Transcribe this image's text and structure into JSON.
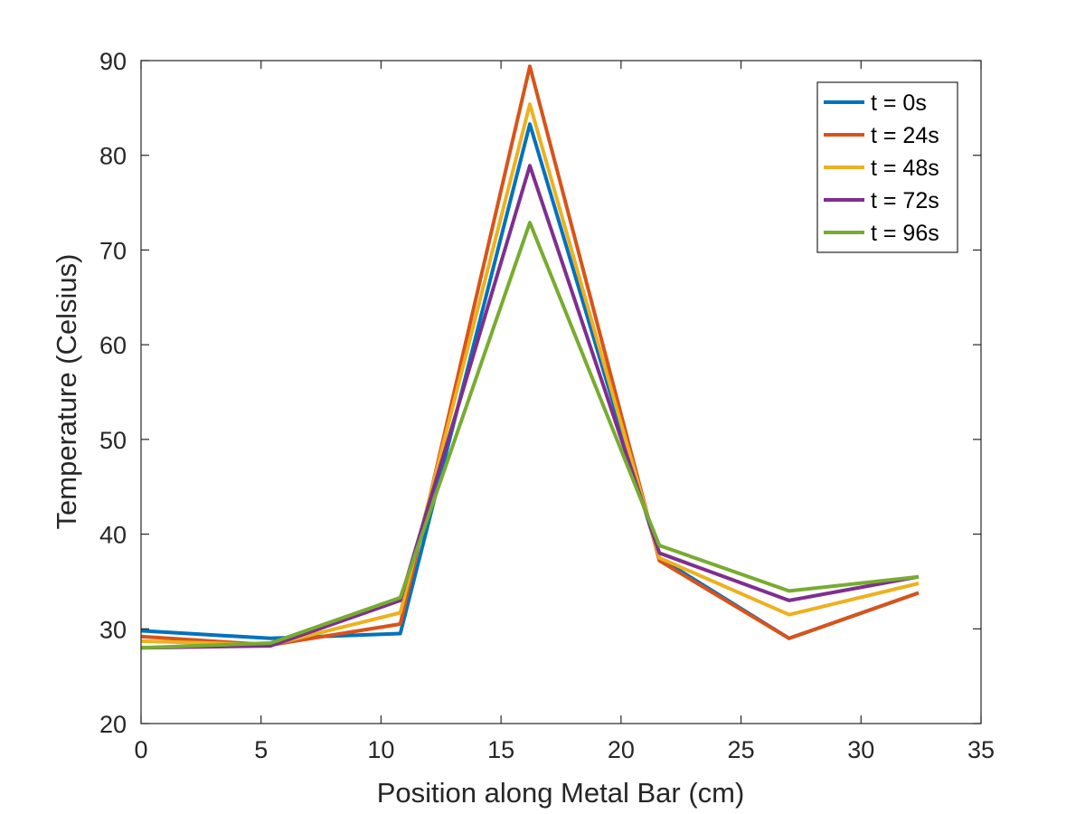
{
  "chart_data": {
    "type": "line",
    "title": "",
    "xlabel": "Position along Metal Bar (cm)",
    "ylabel": "Temperature (Celsius)",
    "xlim": [
      0,
      35
    ],
    "ylim": [
      20,
      90
    ],
    "xticks": [
      0,
      5,
      10,
      15,
      20,
      25,
      30,
      35
    ],
    "yticks": [
      20,
      30,
      40,
      50,
      60,
      70,
      80,
      90
    ],
    "grid": false,
    "legend_position": "top-right",
    "x": [
      0,
      5.4,
      10.8,
      16.2,
      21.6,
      27.0,
      32.4
    ],
    "series": [
      {
        "name": "t = 0s",
        "color": "#0072BD",
        "values": [
          29.8,
          29.0,
          29.5,
          83.3,
          37.5,
          29.0,
          33.8
        ]
      },
      {
        "name": "t = 24s",
        "color": "#D95319",
        "values": [
          29.2,
          28.3,
          30.5,
          89.4,
          37.2,
          29.0,
          33.8
        ]
      },
      {
        "name": "t = 48s",
        "color": "#EDB120",
        "values": [
          28.7,
          28.3,
          31.7,
          85.4,
          37.5,
          31.5,
          34.8
        ]
      },
      {
        "name": "t = 72s",
        "color": "#7E2F8E",
        "values": [
          28.0,
          28.2,
          33.0,
          78.9,
          38.0,
          33.0,
          35.5
        ]
      },
      {
        "name": "t = 96s",
        "color": "#77AC30",
        "values": [
          28.0,
          28.5,
          33.3,
          72.9,
          38.8,
          34.0,
          35.5
        ]
      }
    ]
  }
}
